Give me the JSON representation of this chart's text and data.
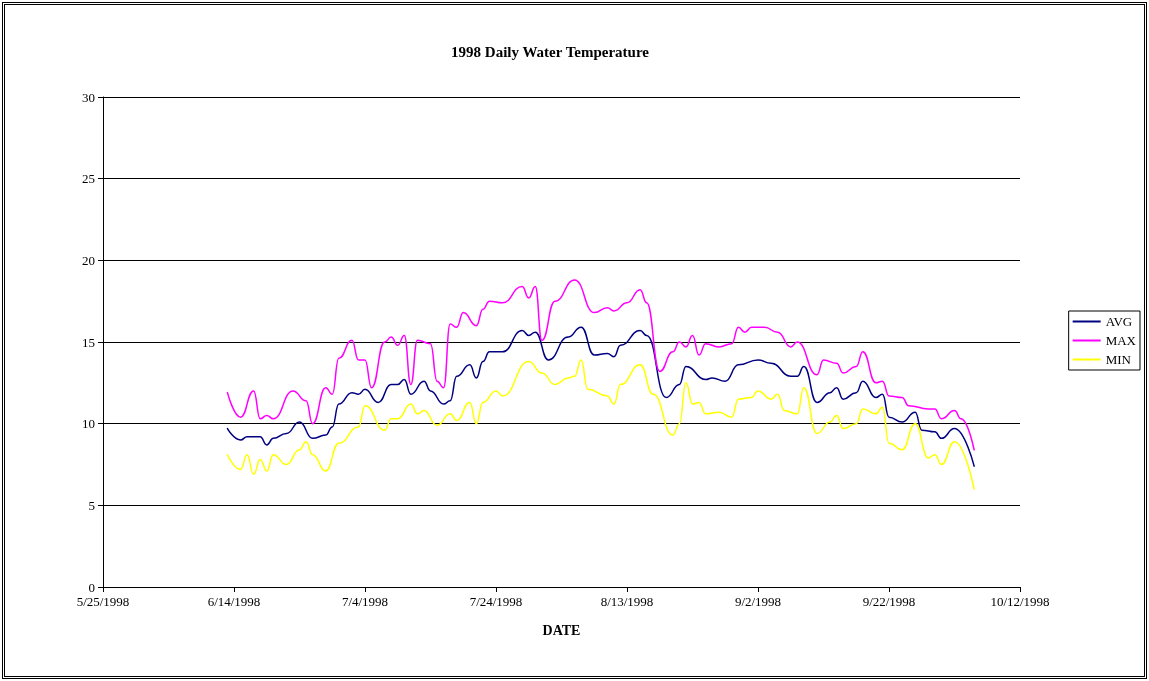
{
  "chart_data": {
    "type": "line",
    "title": "1998 Daily Water Temperature",
    "xlabel": "DATE",
    "xlim": [
      "1998-05-25",
      "1998-10-12"
    ],
    "xticks": [
      {
        "value": "1998-05-25",
        "label": "5/25/1998"
      },
      {
        "value": "1998-06-14",
        "label": "6/14/1998"
      },
      {
        "value": "1998-07-04",
        "label": "7/4/1998"
      },
      {
        "value": "1998-07-24",
        "label": "7/24/1998"
      },
      {
        "value": "1998-08-13",
        "label": "8/13/1998"
      },
      {
        "value": "1998-09-02",
        "label": "9/2/1998"
      },
      {
        "value": "1998-09-22",
        "label": "9/22/1998"
      },
      {
        "value": "1998-10-12",
        "label": "10/12/1998"
      }
    ],
    "ylim": [
      0,
      30
    ],
    "yticks": [
      0,
      5,
      10,
      15,
      20,
      25,
      30
    ],
    "grid": "y",
    "legend": "right",
    "marker": "none",
    "line_style": "solid",
    "series": [
      {
        "name": "AVG",
        "color": "#000080",
        "x": [
          "1998-06-13",
          "1998-06-15",
          "1998-06-16",
          "1998-06-18",
          "1998-06-19",
          "1998-06-20",
          "1998-06-22",
          "1998-06-24",
          "1998-06-26",
          "1998-06-28",
          "1998-06-29",
          "1998-06-30",
          "1998-07-02",
          "1998-07-03",
          "1998-07-04",
          "1998-07-06",
          "1998-07-08",
          "1998-07-09",
          "1998-07-10",
          "1998-07-11",
          "1998-07-13",
          "1998-07-14",
          "1998-07-16",
          "1998-07-17",
          "1998-07-18",
          "1998-07-20",
          "1998-07-21",
          "1998-07-22",
          "1998-07-23",
          "1998-07-25",
          "1998-07-28",
          "1998-07-29",
          "1998-07-30",
          "1998-08-01",
          "1998-08-04",
          "1998-08-06",
          "1998-08-08",
          "1998-08-10",
          "1998-08-11",
          "1998-08-12",
          "1998-08-15",
          "1998-08-16",
          "1998-08-19",
          "1998-08-21",
          "1998-08-22",
          "1998-08-25",
          "1998-08-26",
          "1998-08-28",
          "1998-08-30",
          "1998-09-02",
          "1998-09-04",
          "1998-09-07",
          "1998-09-08",
          "1998-09-09",
          "1998-09-11",
          "1998-09-13",
          "1998-09-14",
          "1998-09-15",
          "1998-09-17",
          "1998-09-18",
          "1998-09-20",
          "1998-09-21",
          "1998-09-22",
          "1998-09-24",
          "1998-09-26",
          "1998-09-27",
          "1998-09-29",
          "1998-09-30",
          "1998-10-02",
          "1998-10-05"
        ],
        "values": [
          9.7,
          9.0,
          9.2,
          9.2,
          8.7,
          9.1,
          9.4,
          10.1,
          9.1,
          9.3,
          9.8,
          11.2,
          11.9,
          11.8,
          12.1,
          11.3,
          12.4,
          12.4,
          12.7,
          11.8,
          12.6,
          12.0,
          11.2,
          11.4,
          12.9,
          13.6,
          12.8,
          13.8,
          14.4,
          14.4,
          15.7,
          15.4,
          15.6,
          13.9,
          15.3,
          15.9,
          14.2,
          14.3,
          14.1,
          14.8,
          15.7,
          15.4,
          11.6,
          12.4,
          13.5,
          12.7,
          12.8,
          12.6,
          13.6,
          13.9,
          13.7,
          12.9,
          12.9,
          13.5,
          11.3,
          11.9,
          12.2,
          11.5,
          11.9,
          12.6,
          11.6,
          11.8,
          10.4,
          10.1,
          10.7,
          9.6,
          9.5,
          9.1,
          9.7,
          7.4
        ]
      },
      {
        "name": "MAX",
        "color": "#ff00ff",
        "x": [
          "1998-06-13",
          "1998-06-15",
          "1998-06-17",
          "1998-06-18",
          "1998-06-19",
          "1998-06-20",
          "1998-06-23",
          "1998-06-25",
          "1998-06-26",
          "1998-06-28",
          "1998-06-29",
          "1998-06-30",
          "1998-07-02",
          "1998-07-03",
          "1998-07-04",
          "1998-07-05",
          "1998-07-07",
          "1998-07-08",
          "1998-07-09",
          "1998-07-10",
          "1998-07-11",
          "1998-07-12",
          "1998-07-14",
          "1998-07-15",
          "1998-07-16",
          "1998-07-17",
          "1998-07-18",
          "1998-07-19",
          "1998-07-21",
          "1998-07-22",
          "1998-07-23",
          "1998-07-25",
          "1998-07-28",
          "1998-07-29",
          "1998-07-30",
          "1998-07-31",
          "1998-08-02",
          "1998-08-05",
          "1998-08-08",
          "1998-08-10",
          "1998-08-11",
          "1998-08-13",
          "1998-08-15",
          "1998-08-16",
          "1998-08-18",
          "1998-08-20",
          "1998-08-21",
          "1998-08-22",
          "1998-08-23",
          "1998-08-24",
          "1998-08-25",
          "1998-08-27",
          "1998-08-29",
          "1998-08-30",
          "1998-08-31",
          "1998-09-01",
          "1998-09-03",
          "1998-09-05",
          "1998-09-07",
          "1998-09-08",
          "1998-09-11",
          "1998-09-12",
          "1998-09-14",
          "1998-09-15",
          "1998-09-17",
          "1998-09-18",
          "1998-09-20",
          "1998-09-21",
          "1998-09-22",
          "1998-09-24",
          "1998-09-25",
          "1998-09-28",
          "1998-09-29",
          "1998-09-30",
          "1998-10-02",
          "1998-10-03",
          "1998-10-05"
        ],
        "values": [
          11.9,
          10.4,
          12.0,
          10.3,
          10.5,
          10.3,
          12.0,
          11.4,
          10.0,
          12.2,
          11.8,
          14.0,
          15.1,
          13.9,
          13.9,
          12.2,
          15.0,
          15.3,
          14.8,
          15.4,
          12.4,
          15.1,
          14.9,
          12.6,
          12.2,
          16.1,
          15.9,
          16.8,
          16.0,
          17.0,
          17.5,
          17.4,
          18.4,
          17.7,
          18.4,
          15.1,
          17.5,
          18.8,
          16.8,
          17.1,
          16.9,
          17.4,
          18.2,
          17.4,
          13.2,
          14.4,
          15.0,
          14.7,
          15.4,
          14.2,
          14.9,
          14.7,
          14.9,
          15.9,
          15.6,
          15.9,
          15.9,
          15.6,
          14.7,
          15.0,
          13.0,
          13.9,
          13.7,
          13.1,
          13.5,
          14.4,
          12.5,
          12.6,
          11.7,
          11.6,
          11.1,
          10.9,
          10.9,
          10.3,
          10.8,
          10.3,
          8.4
        ]
      },
      {
        "name": "MIN",
        "color": "#ffff00",
        "x": [
          "1998-06-13",
          "1998-06-15",
          "1998-06-16",
          "1998-06-17",
          "1998-06-18",
          "1998-06-19",
          "1998-06-20",
          "1998-06-22",
          "1998-06-24",
          "1998-06-25",
          "1998-06-26",
          "1998-06-28",
          "1998-06-30",
          "1998-07-03",
          "1998-07-04",
          "1998-07-07",
          "1998-07-08",
          "1998-07-09",
          "1998-07-11",
          "1998-07-12",
          "1998-07-13",
          "1998-07-15",
          "1998-07-17",
          "1998-07-18",
          "1998-07-20",
          "1998-07-21",
          "1998-07-22",
          "1998-07-24",
          "1998-07-25",
          "1998-07-29",
          "1998-07-31",
          "1998-08-02",
          "1998-08-04",
          "1998-08-05",
          "1998-08-06",
          "1998-08-07",
          "1998-08-10",
          "1998-08-11",
          "1998-08-12",
          "1998-08-15",
          "1998-08-17",
          "1998-08-20",
          "1998-08-21",
          "1998-08-22",
          "1998-08-23",
          "1998-08-24",
          "1998-08-25",
          "1998-08-27",
          "1998-08-29",
          "1998-08-30",
          "1998-09-01",
          "1998-09-02",
          "1998-09-04",
          "1998-09-05",
          "1998-09-06",
          "1998-09-08",
          "1998-09-09",
          "1998-09-11",
          "1998-09-13",
          "1998-09-14",
          "1998-09-15",
          "1998-09-17",
          "1998-09-18",
          "1998-09-20",
          "1998-09-21",
          "1998-09-22",
          "1998-09-24",
          "1998-09-26",
          "1998-09-28",
          "1998-09-29",
          "1998-09-30",
          "1998-10-02",
          "1998-10-05"
        ],
        "values": [
          8.1,
          7.2,
          8.1,
          6.9,
          7.8,
          7.1,
          8.1,
          7.5,
          8.4,
          8.9,
          8.1,
          7.1,
          8.8,
          9.8,
          11.1,
          9.6,
          10.3,
          10.3,
          11.2,
          10.6,
          10.8,
          9.9,
          10.6,
          10.2,
          11.3,
          10.0,
          11.3,
          12.0,
          11.7,
          13.8,
          13.1,
          12.4,
          12.8,
          12.9,
          13.9,
          12.1,
          11.7,
          11.2,
          12.4,
          13.6,
          11.8,
          9.3,
          10.0,
          12.5,
          11.2,
          11.3,
          10.6,
          10.7,
          10.4,
          11.5,
          11.6,
          12.0,
          11.5,
          11.8,
          10.8,
          10.6,
          12.2,
          9.4,
          10.1,
          10.5,
          9.7,
          10.0,
          10.9,
          10.6,
          11.0,
          8.8,
          8.4,
          10.0,
          7.9,
          8.1,
          7.5,
          8.9,
          6.0
        ]
      }
    ]
  }
}
